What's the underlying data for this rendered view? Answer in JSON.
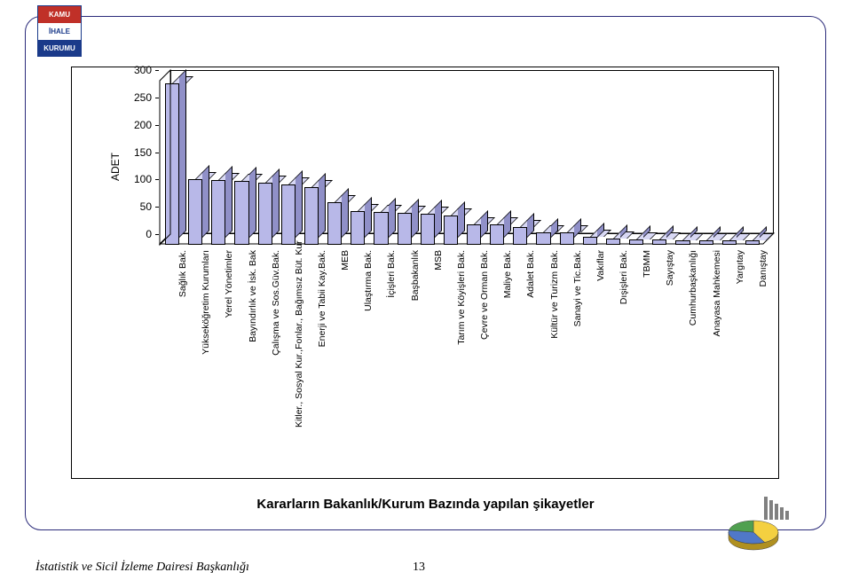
{
  "logo": {
    "line1": "KAMU",
    "line2": "İHALE",
    "line3": "KURUMU"
  },
  "chart": {
    "type": "bar",
    "ylabel": "ADET",
    "ylabel_fontsize": 12,
    "ylim": [
      0,
      300
    ],
    "ytick_step": 50,
    "yticks": [
      0,
      50,
      100,
      150,
      200,
      250,
      300
    ],
    "bar_color_front": "#b8b8e8",
    "bar_color_top": "#d8d8f4",
    "bar_color_side": "#9090c8",
    "background_color": "#ffffff",
    "frame_color": "#000000",
    "categories": [
      "Sağlık Bak.",
      "Yükseköğretim Kurumları",
      "Yerel Yönetimler",
      "Bayındırlık ve İsk. Bak",
      "Çalışma ve Sos.Güv.Bak.",
      "Kitler., Sosyal Kur.,Fonlar., Bağımsız Büt. Kur",
      "Enerji ve Tabii Kay.Bak.",
      "MEB",
      "Ulaştırma Bak.",
      "İçişleri Bak.",
      "Başbakanlık",
      "MSB",
      "Tarım ve Köyişleri Bak.",
      "Çevre ve Orman Bak.",
      "Maliye Bak.",
      "Adalet Bak.",
      "Kültür ve Turizm Bak.",
      "Sanayi ve Tic.Bak.",
      "Vakıflar",
      "Dışişleri Bak.",
      "TBMM",
      "Sayıştay",
      "Cumhurbaşkanlığı",
      "Anayasa Mahkemesi",
      "Yargıtay",
      "Danıştay"
    ],
    "values": [
      295,
      120,
      118,
      116,
      113,
      110,
      105,
      78,
      62,
      60,
      58,
      56,
      54,
      38,
      38,
      32,
      22,
      22,
      14,
      12,
      10,
      10,
      8,
      8,
      8,
      8
    ],
    "xlabel_fontsize": 10.5,
    "ytick_fontsize": 12
  },
  "caption": "Kararların Bakanlık/Kurum Bazında yapılan şikayetler",
  "footer": {
    "dept": "İstatistik ve Sicil İzleme Dairesi Başkanlığı",
    "page": "13"
  },
  "decor_colors": {
    "slice1": "#f4d040",
    "slice2": "#5078c8",
    "slice3": "#50a050",
    "bars": "#808080"
  }
}
